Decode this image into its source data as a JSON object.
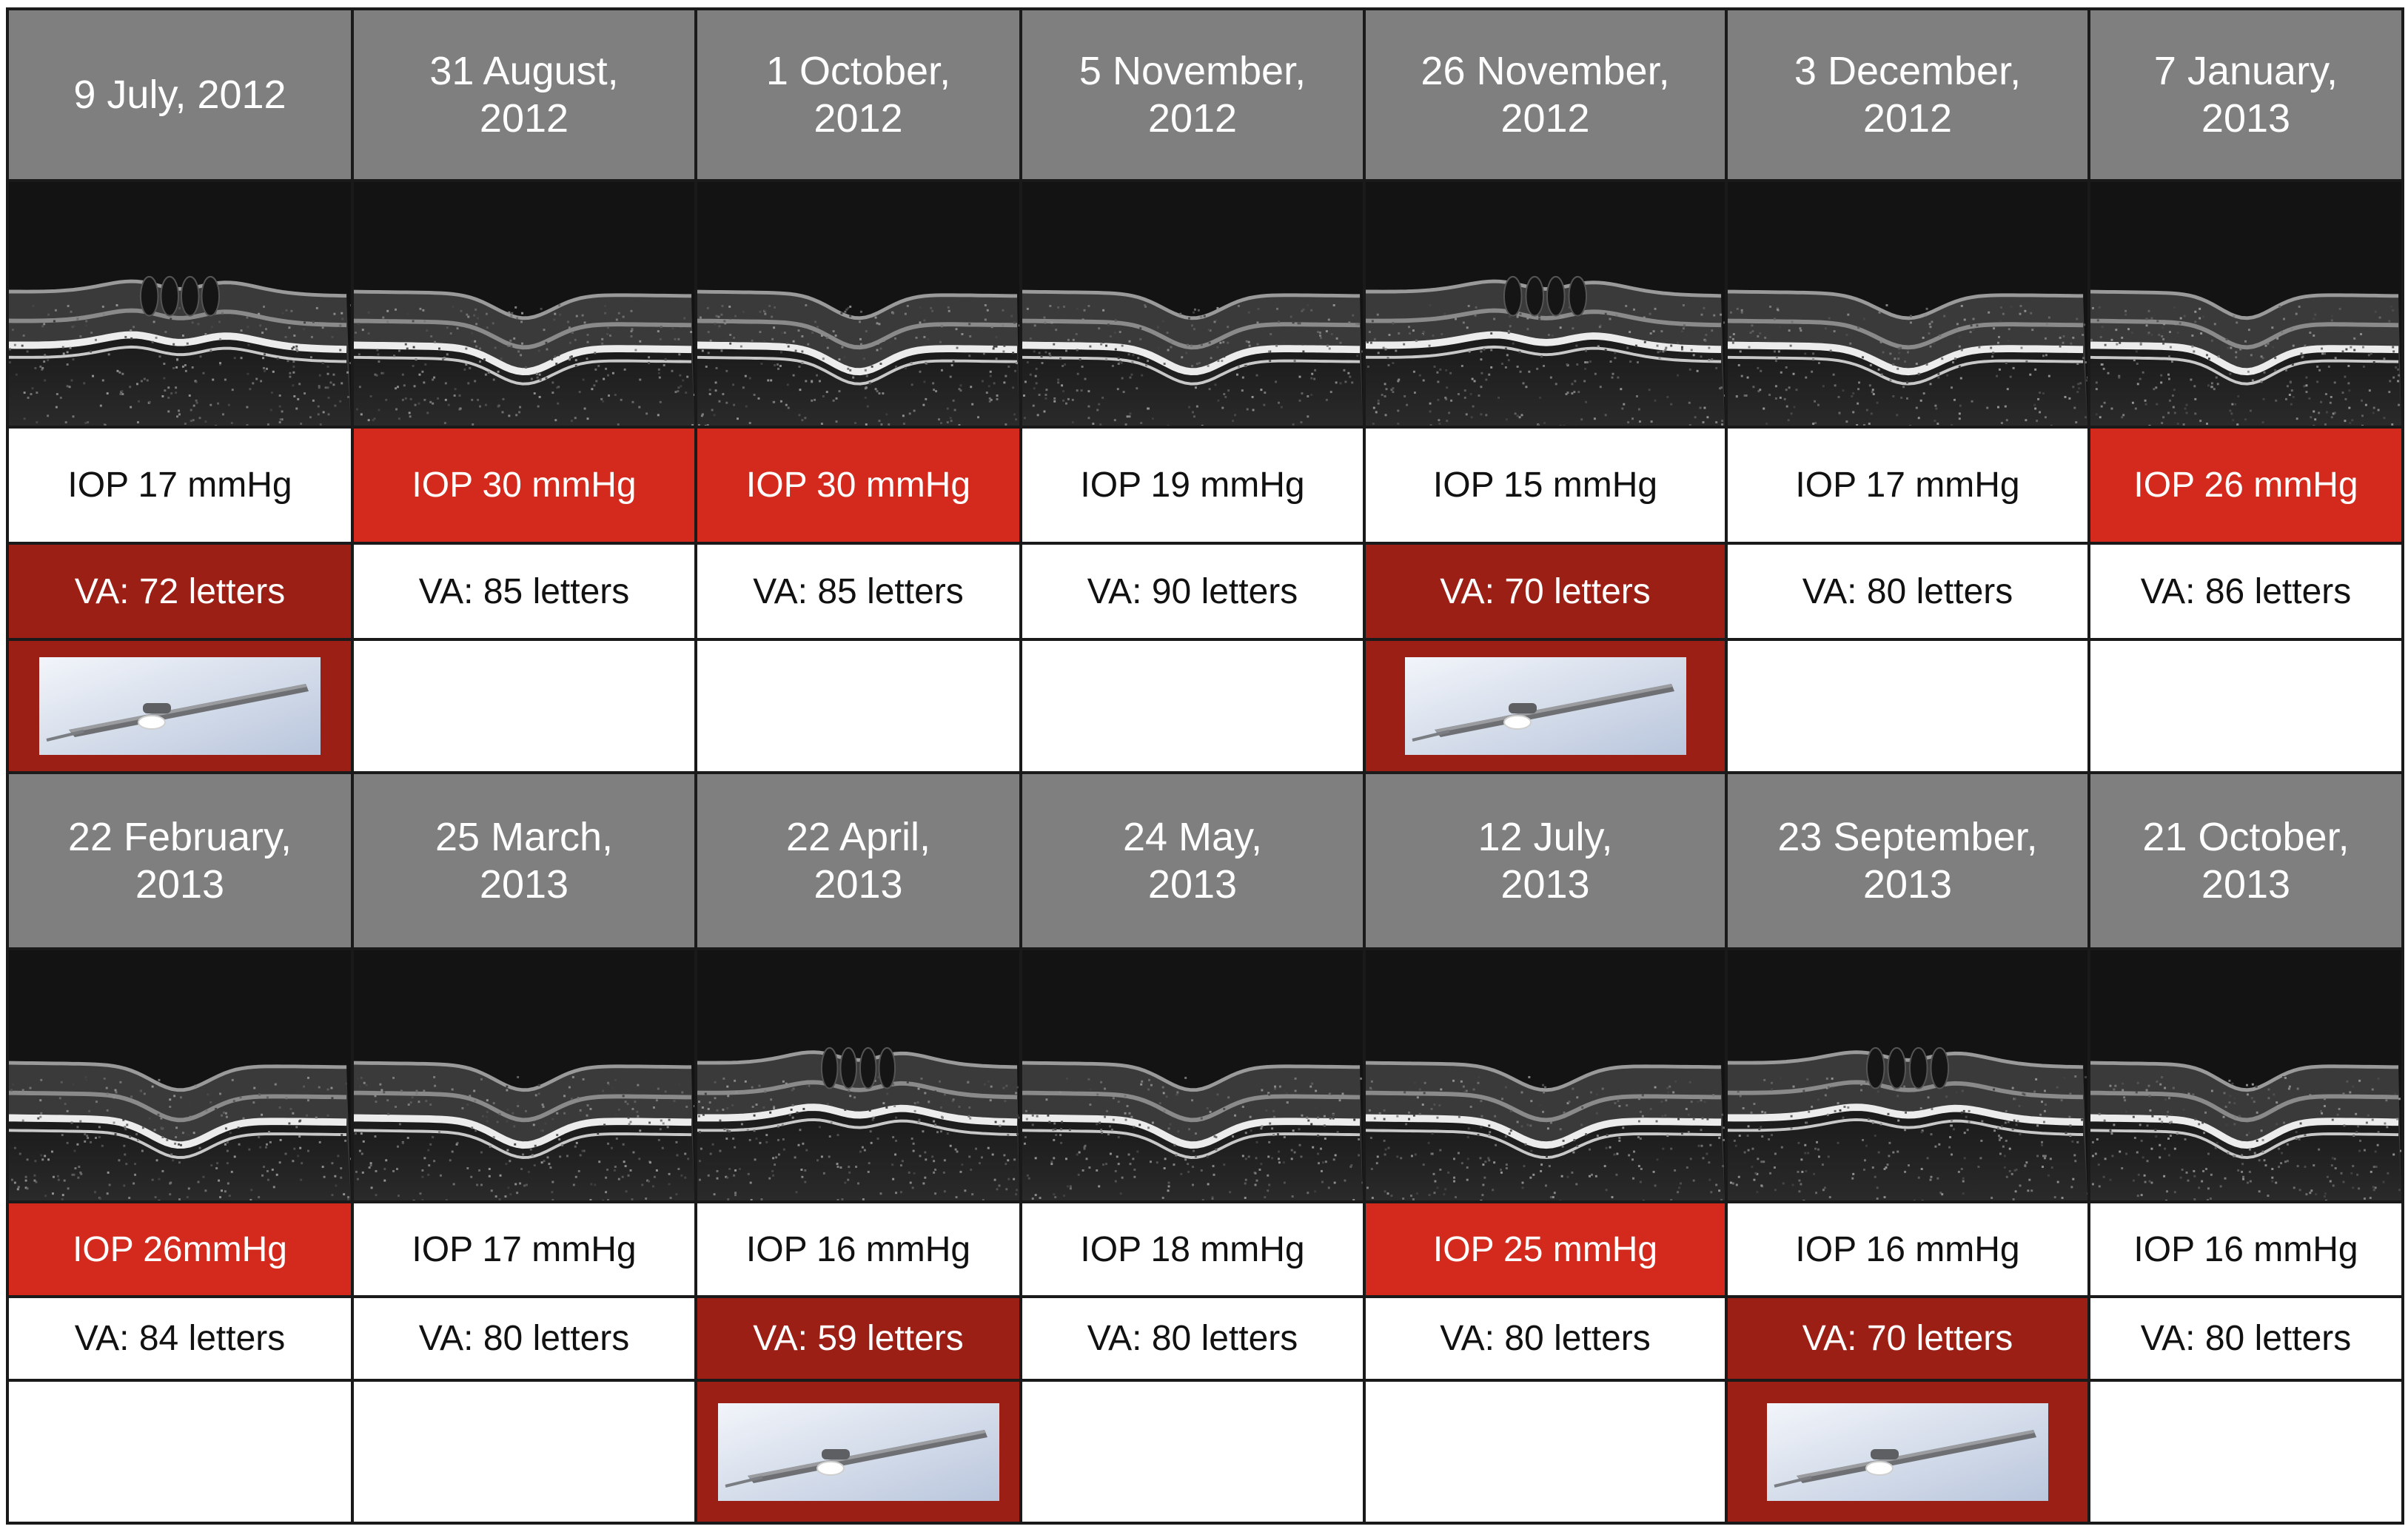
{
  "colors": {
    "header_bg": "#7f7f7f",
    "iop_alert": "#d42a1e",
    "va_alert": "#9c1f16",
    "injection_bg": "#9c1f16"
  },
  "rows": [
    {
      "visits": [
        {
          "date": "9 July, 2012",
          "iop": "IOP 17 mmHg",
          "iop_alert": false,
          "va": "VA: 72 letters",
          "va_alert": true,
          "injection": true,
          "edema": true,
          "icon": "implant-device-icon"
        },
        {
          "date": "31 August,\n2012",
          "iop": "IOP 30 mmHg",
          "iop_alert": true,
          "va": "VA: 85 letters",
          "va_alert": false,
          "injection": false,
          "edema": false
        },
        {
          "date": "1 October,\n2012",
          "iop": "IOP 30 mmHg",
          "iop_alert": true,
          "va": "VA: 85 letters",
          "va_alert": false,
          "injection": false,
          "edema": false
        },
        {
          "date": "5 November,\n2012",
          "iop": "IOP 19 mmHg",
          "iop_alert": false,
          "va": "VA: 90 letters",
          "va_alert": false,
          "injection": false,
          "edema": false
        },
        {
          "date": "26 November,\n2012",
          "iop": "IOP 15 mmHg",
          "iop_alert": false,
          "va": "VA: 70 letters",
          "va_alert": true,
          "injection": true,
          "edema": true,
          "icon": "implant-device-icon"
        },
        {
          "date": "3 December,\n2012",
          "iop": "IOP 17 mmHg",
          "iop_alert": false,
          "va": "VA: 80 letters",
          "va_alert": false,
          "injection": false,
          "edema": false
        },
        {
          "date": "7 January,\n2013",
          "iop": "IOP 26 mmHg",
          "iop_alert": true,
          "va": "VA: 86 letters",
          "va_alert": false,
          "injection": false,
          "edema": false
        }
      ]
    },
    {
      "visits": [
        {
          "date": "22 February,\n2013",
          "iop": "IOP 26mmHg",
          "iop_alert": true,
          "va": "VA: 84 letters",
          "va_alert": false,
          "injection": false,
          "edema": false
        },
        {
          "date": "25 March,\n2013",
          "iop": "IOP 17 mmHg",
          "iop_alert": false,
          "va": "VA: 80 letters",
          "va_alert": false,
          "injection": false,
          "edema": false
        },
        {
          "date": "22 April,\n2013",
          "iop": "IOP 16 mmHg",
          "iop_alert": false,
          "va": "VA: 59 letters",
          "va_alert": true,
          "injection": true,
          "edema": true,
          "icon": "implant-device-icon"
        },
        {
          "date": "24 May,\n2013",
          "iop": "IOP 18 mmHg",
          "iop_alert": false,
          "va": "VA: 80 letters",
          "va_alert": false,
          "injection": false,
          "edema": false
        },
        {
          "date": "12 July,\n2013",
          "iop": "IOP 25 mmHg",
          "iop_alert": true,
          "va": "VA: 80 letters",
          "va_alert": false,
          "injection": false,
          "edema": false
        },
        {
          "date": "23 September,\n2013",
          "iop": "IOP 16 mmHg",
          "iop_alert": false,
          "va": "VA: 70 letters",
          "va_alert": true,
          "injection": true,
          "edema": true,
          "icon": "implant-device-icon"
        },
        {
          "date": "21 October,\n2013",
          "iop": "IOP 16 mmHg",
          "iop_alert": false,
          "va": "VA: 80 letters",
          "va_alert": false,
          "injection": false,
          "edema": false
        }
      ]
    }
  ]
}
